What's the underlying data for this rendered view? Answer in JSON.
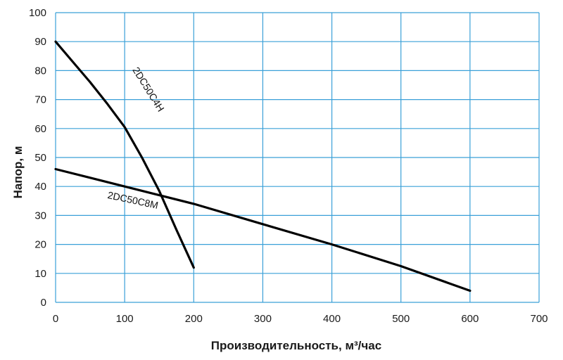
{
  "chart_data": {
    "type": "line",
    "title": "",
    "xlabel": "Производительность, м³/час",
    "ylabel": "Напор, м",
    "xlim": [
      0,
      700
    ],
    "ylim": [
      0,
      100
    ],
    "xticks": [
      0,
      100,
      200,
      300,
      400,
      500,
      600,
      700
    ],
    "yticks": [
      0,
      10,
      20,
      30,
      40,
      50,
      60,
      70,
      80,
      90,
      100
    ],
    "grid": true,
    "legend": "none",
    "colors": {
      "grid": "#3aa0d8",
      "series": "#000000"
    },
    "series": [
      {
        "name": "2DC50C4H",
        "points": [
          [
            0,
            90
          ],
          [
            25,
            83
          ],
          [
            50,
            76
          ],
          [
            75,
            68.5
          ],
          [
            100,
            60.5
          ],
          [
            125,
            50
          ],
          [
            150,
            38.5
          ],
          [
            175,
            25
          ],
          [
            200,
            12
          ]
        ]
      },
      {
        "name": "2DC50C8M",
        "points": [
          [
            0,
            46
          ],
          [
            50,
            43
          ],
          [
            100,
            40
          ],
          [
            150,
            37
          ],
          [
            200,
            34
          ],
          [
            300,
            27
          ],
          [
            400,
            20
          ],
          [
            500,
            12.5
          ],
          [
            600,
            4
          ]
        ]
      }
    ]
  }
}
